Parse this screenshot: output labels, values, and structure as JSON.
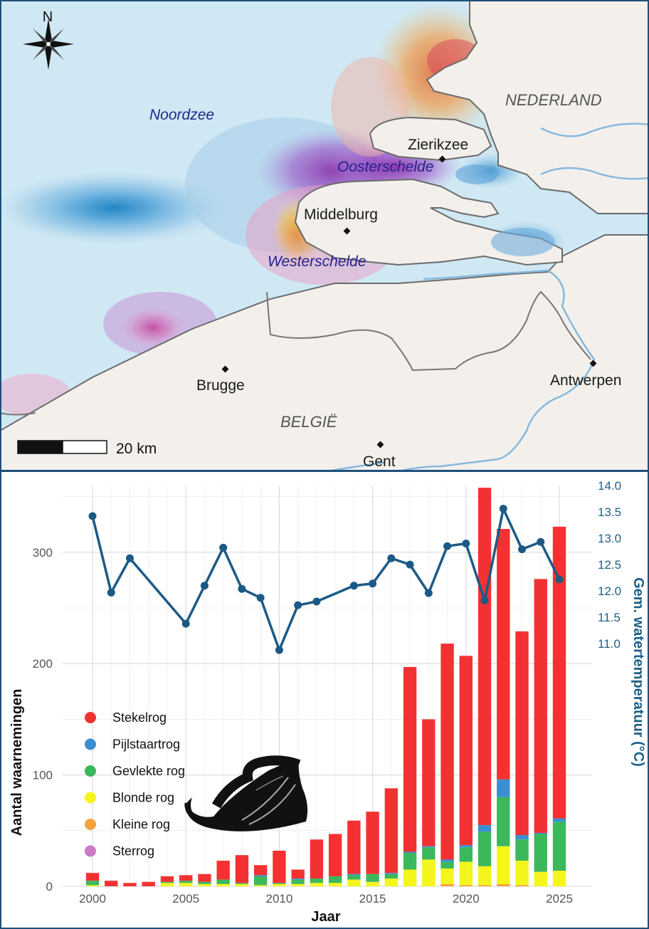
{
  "map": {
    "north_label": "N",
    "sea_label": "Noordzee",
    "waters": [
      "Oosterschelde",
      "Westerschelde"
    ],
    "country_nl": "NEDERLAND",
    "country_be": "BELGIË",
    "cities": [
      "Zierikzee",
      "Middelburg",
      "Brugge",
      "Antwerpen",
      "Gent"
    ],
    "scale_label": "20 km",
    "icons": [
      "compass-rose-icon",
      "city-dot-icon"
    ],
    "colors": {
      "sea": "#cfe8f3",
      "land": "#f3f0ec",
      "border": "#6b6b6b",
      "river": "#86b9dd"
    }
  },
  "chart_data": {
    "type": "bar",
    "xlabel": "Jaar",
    "ylabel": "Aantal waarnemingen",
    "ylabel_right": "Gem. watertemperatuur (°C)",
    "x_ticks": [
      "2000",
      "2005",
      "2010",
      "2015",
      "2020",
      "2025"
    ],
    "y_ticks": [
      "0",
      "100",
      "200",
      "300"
    ],
    "y2_ticks": [
      "11.0",
      "11.5",
      "12.0",
      "12.5",
      "13.0",
      "13.5",
      "14.0"
    ],
    "ylim": [
      0,
      360
    ],
    "y2lim": [
      6.4,
      14.0
    ],
    "grid": true,
    "legend_position": "left",
    "categories": [
      2000,
      2001,
      2002,
      2003,
      2004,
      2005,
      2006,
      2007,
      2008,
      2009,
      2010,
      2011,
      2012,
      2013,
      2014,
      2015,
      2016,
      2017,
      2018,
      2019,
      2020,
      2021,
      2022,
      2023,
      2024,
      2025
    ],
    "stacked": true,
    "series": [
      {
        "name": "Sterrog",
        "color": "#cc79c9",
        "values": [
          0,
          0,
          0,
          0,
          0,
          0,
          0,
          0,
          0,
          0,
          0,
          0,
          0,
          0,
          0,
          0,
          0,
          0,
          0,
          0,
          0,
          0,
          0,
          0,
          0,
          0
        ]
      },
      {
        "name": "Kleine rog",
        "color": "#f5a33c",
        "values": [
          0,
          0,
          0,
          0,
          0,
          0,
          0,
          0,
          0,
          0,
          0,
          0,
          0,
          0,
          0,
          0,
          0,
          0,
          0,
          2,
          1,
          1,
          2,
          1,
          0,
          0
        ]
      },
      {
        "name": "Blonde rog",
        "color": "#f5f51e",
        "values": [
          1,
          0,
          0,
          0,
          3,
          3,
          2,
          2,
          2,
          1,
          2,
          2,
          3,
          3,
          6,
          4,
          7,
          15,
          24,
          14,
          21,
          17,
          34,
          22,
          13,
          14
        ]
      },
      {
        "name": "Gevlekte rog",
        "color": "#3cb85c",
        "values": [
          4,
          0,
          0,
          0,
          1,
          2,
          2,
          4,
          1,
          8,
          1,
          4,
          4,
          6,
          4,
          7,
          4,
          15,
          11,
          6,
          13,
          31,
          44,
          19,
          34,
          44
        ]
      },
      {
        "name": "Pijlstaartrog",
        "color": "#3a8fd0",
        "values": [
          0,
          0,
          0,
          0,
          0,
          0,
          0,
          0,
          0,
          1,
          0,
          1,
          0,
          0,
          1,
          0,
          1,
          1,
          1,
          2,
          2,
          6,
          16,
          4,
          1,
          3
        ]
      },
      {
        "name": "Stekelrog",
        "color": "#f23232",
        "values": [
          7,
          5,
          3,
          4,
          5,
          5,
          7,
          17,
          25,
          9,
          29,
          8,
          35,
          38,
          48,
          56,
          76,
          166,
          114,
          194,
          170,
          303,
          225,
          183,
          228,
          262
        ]
      }
    ],
    "line": {
      "color": "#1c5a85",
      "values": [
        13.42,
        11.97,
        12.62,
        null,
        null,
        11.38,
        12.1,
        12.82,
        12.04,
        11.87,
        10.88,
        11.73,
        11.8,
        null,
        12.1,
        12.14,
        12.62,
        12.5,
        11.96,
        12.85,
        12.9,
        11.82,
        13.56,
        12.79,
        12.93,
        12.22
      ]
    }
  }
}
